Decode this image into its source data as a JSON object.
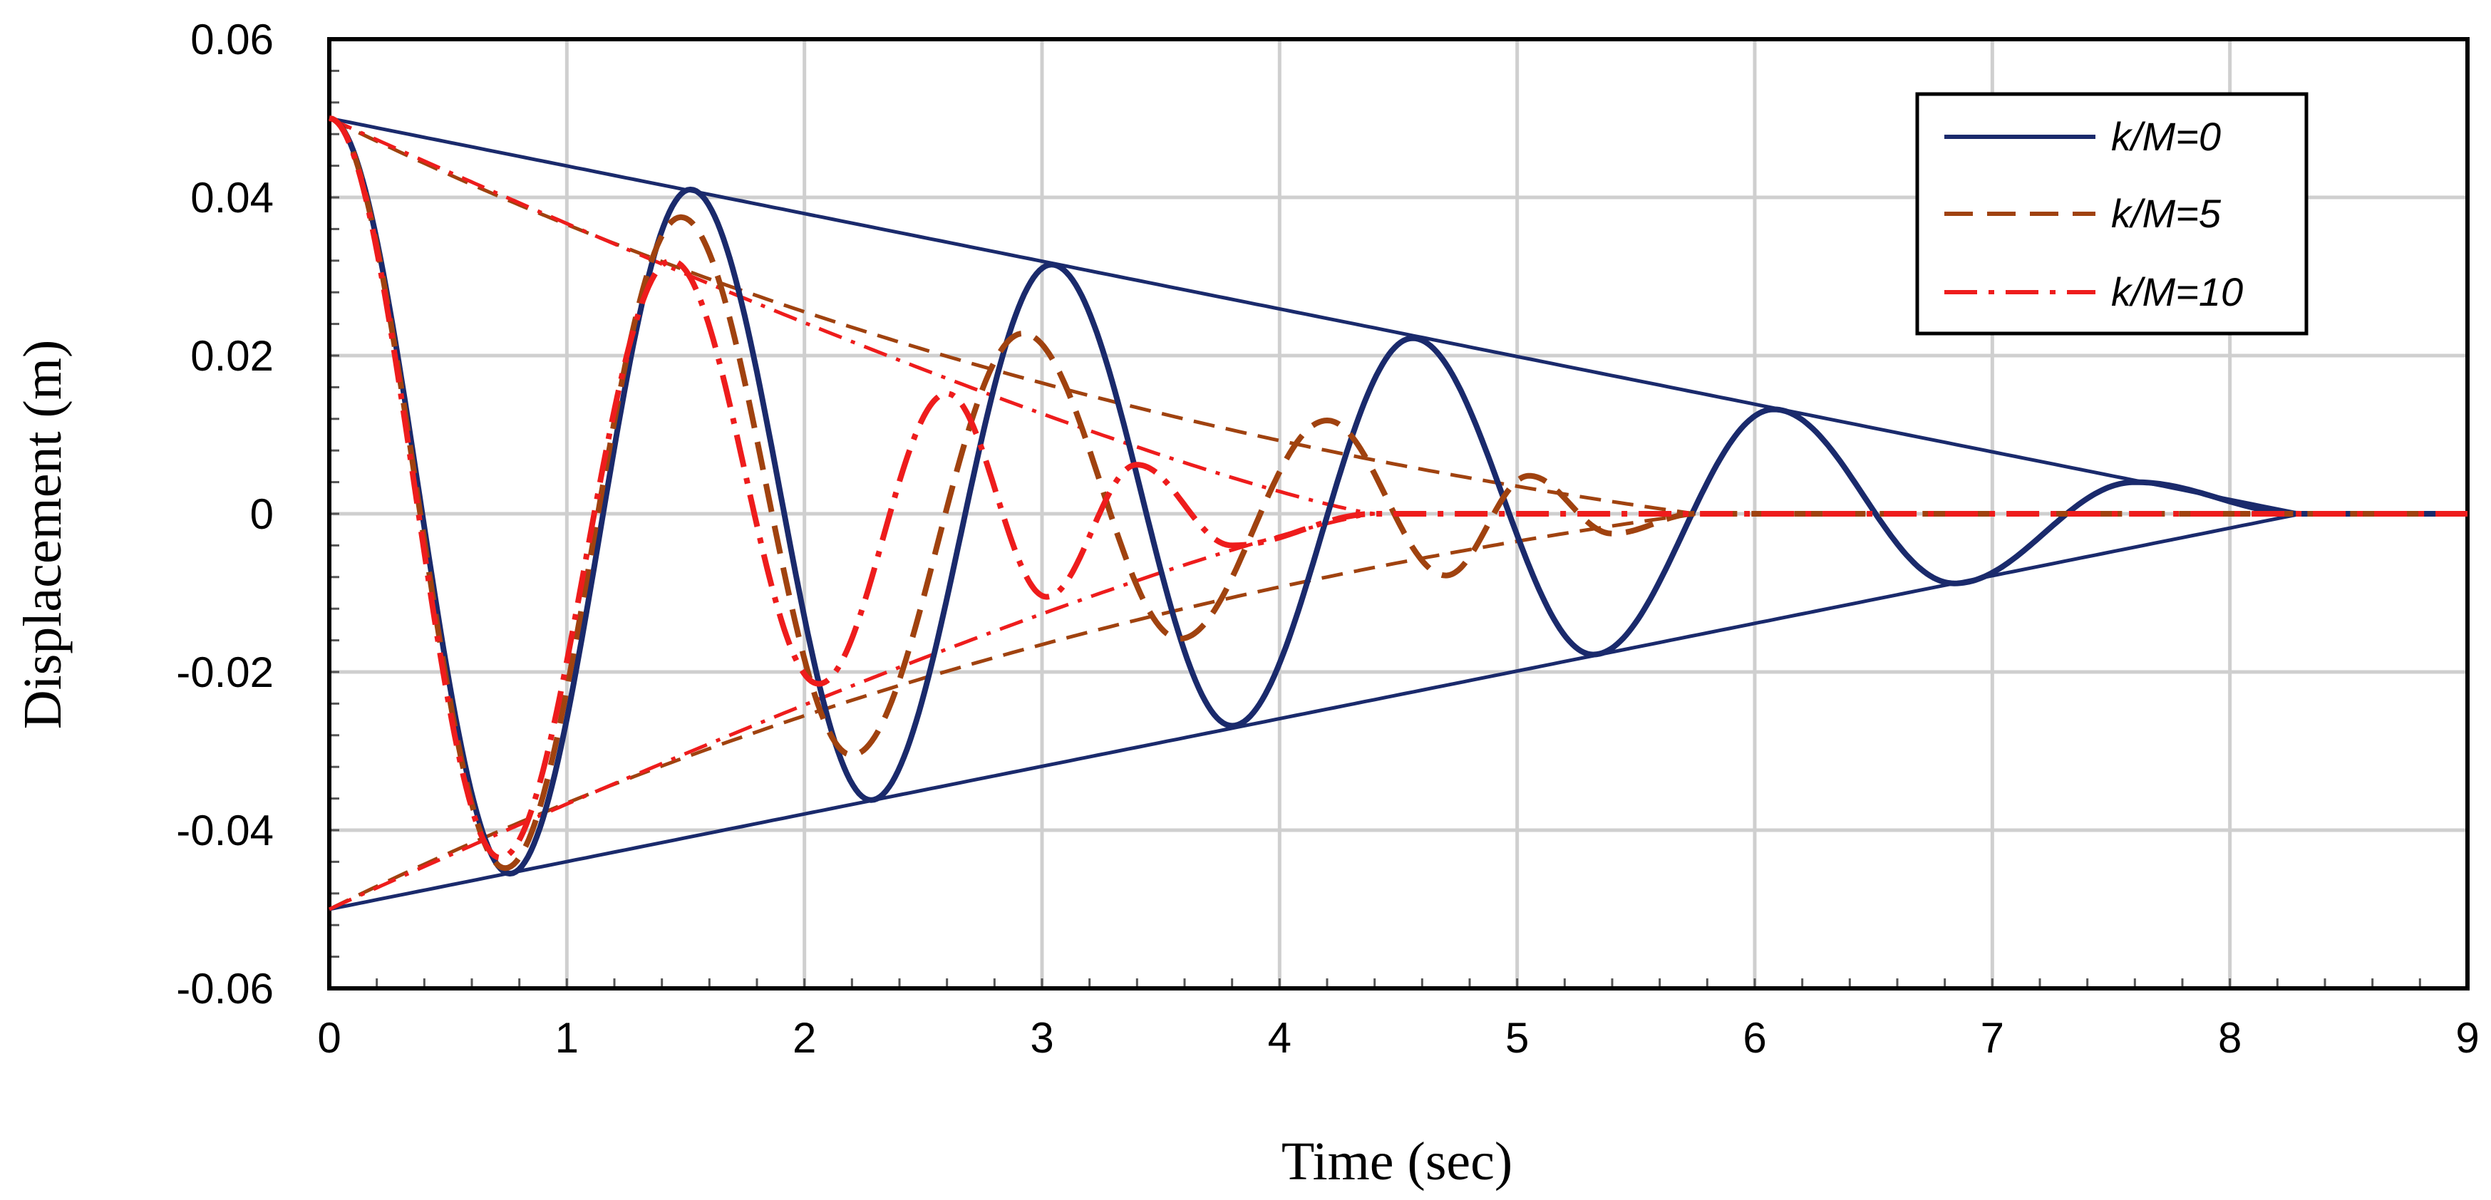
{
  "chart_data": {
    "type": "line",
    "title": "",
    "xlabel": "Time  (sec)",
    "ylabel": "Displacement (m)",
    "xlim": [
      0,
      9
    ],
    "ylim": [
      -0.06,
      0.06
    ],
    "x_ticks": [
      0,
      1,
      2,
      3,
      4,
      5,
      6,
      7,
      8,
      9
    ],
    "x_tick_labels": [
      "0",
      "1",
      "2",
      "3",
      "4",
      "5",
      "6",
      "7",
      "8",
      "9"
    ],
    "y_ticks": [
      -0.06,
      -0.04,
      -0.02,
      0,
      0.02,
      0.04,
      0.06
    ],
    "y_tick_labels": [
      "-0.06",
      "-0.04",
      "-0.02",
      "0",
      "0.02",
      "0.04",
      "0.06"
    ],
    "grid": true,
    "legend_position": "top-right",
    "series": [
      {
        "name": "k/M=0",
        "color": "#1a2a6c",
        "style": "solid",
        "amplitude": 0.05,
        "period": 1.52,
        "friction_stop_time": 8.3,
        "envelope_end_time": 8.3,
        "peaks": [
          {
            "t": 0.76,
            "y": -0.0455
          },
          {
            "t": 1.52,
            "y": 0.041
          },
          {
            "t": 2.28,
            "y": -0.0362
          },
          {
            "t": 3.04,
            "y": 0.0315
          },
          {
            "t": 3.8,
            "y": -0.0268
          },
          {
            "t": 4.56,
            "y": 0.0222
          },
          {
            "t": 5.32,
            "y": -0.0178
          },
          {
            "t": 6.08,
            "y": 0.0132
          },
          {
            "t": 6.84,
            "y": -0.0088
          },
          {
            "t": 7.6,
            "y": 0.004
          }
        ]
      },
      {
        "name": "k/M=5",
        "color": "#a0420f",
        "style": "dashed",
        "amplitude": 0.05,
        "period_start": 1.48,
        "period_end": 0.9,
        "friction_stop_time": 5.75,
        "envelope_end_time": 5.75,
        "peaks": [
          {
            "t": 0.74,
            "y": -0.0448
          },
          {
            "t": 1.48,
            "y": 0.0375
          },
          {
            "t": 2.2,
            "y": -0.0305
          },
          {
            "t": 2.92,
            "y": 0.0228
          },
          {
            "t": 3.58,
            "y": -0.0158
          },
          {
            "t": 4.2,
            "y": 0.0118
          },
          {
            "t": 4.7,
            "y": -0.0078
          },
          {
            "t": 5.05,
            "y": 0.0048
          },
          {
            "t": 5.4,
            "y": -0.0025
          }
        ]
      },
      {
        "name": "k/M=10",
        "color": "#ee1c1c",
        "style": "dash-dot",
        "amplitude": 0.05,
        "period_start": 1.44,
        "period_end": 0.86,
        "friction_stop_time": 4.4,
        "envelope_end_time": 4.4,
        "peaks": [
          {
            "t": 0.72,
            "y": -0.0435
          },
          {
            "t": 1.44,
            "y": 0.032
          },
          {
            "t": 2.06,
            "y": -0.0215
          },
          {
            "t": 2.6,
            "y": 0.0152
          },
          {
            "t": 3.02,
            "y": -0.0105
          },
          {
            "t": 3.4,
            "y": 0.0062
          },
          {
            "t": 3.8,
            "y": -0.004
          }
        ]
      }
    ]
  }
}
